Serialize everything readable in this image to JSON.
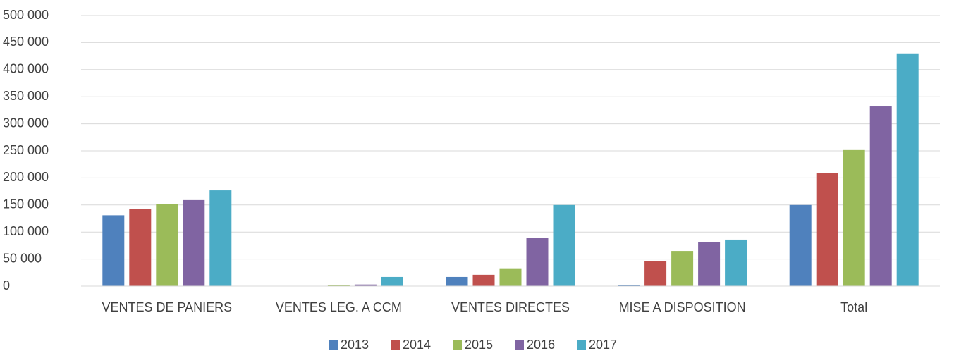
{
  "chart_data": {
    "type": "bar",
    "categories": [
      "VENTES DE PANIERS",
      "VENTES LEG. A CCM",
      "VENTES DIRECTES",
      "MISE A DISPOSITION",
      "Total"
    ],
    "series": [
      {
        "name": "2013",
        "color": "#4f81bd",
        "values": [
          131000,
          0,
          17000,
          2000,
          150000
        ]
      },
      {
        "name": "2014",
        "color": "#c0504d",
        "values": [
          142000,
          0,
          21000,
          46000,
          209000
        ]
      },
      {
        "name": "2015",
        "color": "#9bbb59",
        "values": [
          152000,
          1500,
          33000,
          65000,
          251500
        ]
      },
      {
        "name": "2016",
        "color": "#8064a2",
        "values": [
          159000,
          3000,
          89000,
          81000,
          332000
        ]
      },
      {
        "name": "2017",
        "color": "#4bacc6",
        "values": [
          177000,
          17000,
          150000,
          86000,
          430000
        ]
      }
    ],
    "ylim": [
      0,
      500000
    ],
    "yticks": [
      0,
      {
        "value": 50000,
        "label": "50 000"
      },
      {
        "value": 100000,
        "label": "100 000"
      },
      {
        "value": 150000,
        "label": "150 000"
      },
      {
        "value": 200000,
        "label": "200 000"
      },
      {
        "value": 250000,
        "label": "250 000"
      },
      {
        "value": 300000,
        "label": "300 000"
      },
      {
        "value": 350000,
        "label": "350 000"
      },
      {
        "value": 400000,
        "label": "400 000"
      },
      {
        "value": 450000,
        "label": "450 000"
      },
      {
        "value": 500000,
        "label": "500 000"
      }
    ],
    "grid": true,
    "legend": "bottom"
  }
}
